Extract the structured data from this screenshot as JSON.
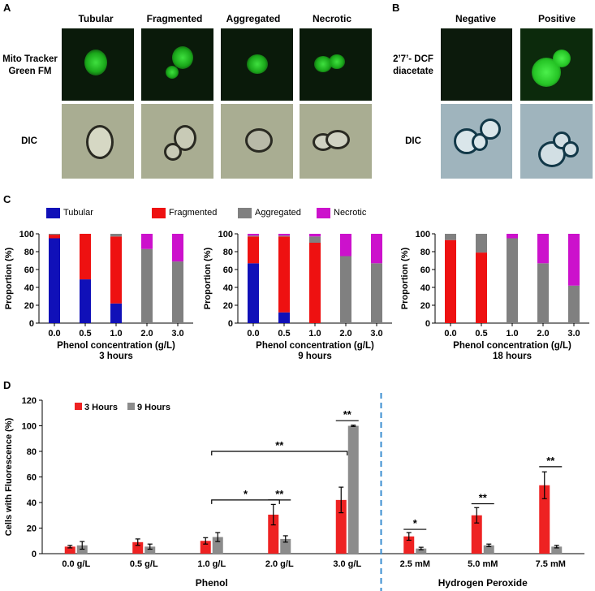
{
  "panelA": {
    "letter": "A",
    "columns": [
      "Tubular",
      "Fragmented",
      "Aggregated",
      "Necrotic"
    ],
    "rows": [
      "Mito Tracker Green FM",
      "DIC"
    ]
  },
  "panelB": {
    "letter": "B",
    "columns": [
      "Negative",
      "Positive"
    ],
    "rows": [
      "2’7’- DCF diacetate",
      "DIC"
    ]
  },
  "panelC": {
    "letter": "C",
    "legend": [
      {
        "name": "Tubular",
        "color": "#1010b8"
      },
      {
        "name": "Fragmented",
        "color": "#ee1111"
      },
      {
        "name": "Aggregated",
        "color": "#808080"
      },
      {
        "name": "Necrotic",
        "color": "#cc11cc"
      }
    ]
  },
  "panelD": {
    "letter": "D",
    "group1": "Phenol",
    "group2": "Hydrogen Peroxide",
    "legend": [
      {
        "name": "3 Hours",
        "color": "#ee2222"
      },
      {
        "name": "9 Hours",
        "color": "#8c8c8c"
      }
    ]
  },
  "chart_data": [
    {
      "type": "bar",
      "stacked": true,
      "xlabel": "Phenol concentration (g/L)",
      "subtitle": "3 hours",
      "ylabel": "Proportion (%)",
      "categories": [
        "0.0",
        "0.5",
        "1.0",
        "2.0",
        "3.0"
      ],
      "ylim": [
        0,
        100
      ],
      "yticks": [
        0,
        20,
        40,
        60,
        80,
        100
      ],
      "series": [
        {
          "name": "Tubular",
          "values": [
            95,
            49,
            22,
            0,
            0
          ]
        },
        {
          "name": "Fragmented",
          "values": [
            4,
            51,
            75,
            0,
            0
          ]
        },
        {
          "name": "Aggregated",
          "values": [
            1,
            0,
            3,
            83,
            69
          ]
        },
        {
          "name": "Necrotic",
          "values": [
            0,
            0,
            0,
            17,
            31
          ]
        }
      ]
    },
    {
      "type": "bar",
      "stacked": true,
      "xlabel": "Phenol concentration (g/L)",
      "subtitle": "9 hours",
      "ylabel": "Proportion (%)",
      "categories": [
        "0.0",
        "0.5",
        "1.0",
        "2.0",
        "3.0"
      ],
      "ylim": [
        0,
        100
      ],
      "yticks": [
        0,
        20,
        40,
        60,
        80,
        100
      ],
      "series": [
        {
          "name": "Tubular",
          "values": [
            67,
            12,
            0,
            0,
            0
          ]
        },
        {
          "name": "Fragmented",
          "values": [
            30,
            85,
            90,
            0,
            0
          ]
        },
        {
          "name": "Aggregated",
          "values": [
            1,
            1,
            7,
            75,
            67
          ]
        },
        {
          "name": "Necrotic",
          "values": [
            2,
            2,
            3,
            25,
            33
          ]
        }
      ]
    },
    {
      "type": "bar",
      "stacked": true,
      "xlabel": "Phenol concentration (g/L)",
      "subtitle": "18 hours",
      "ylabel": "Proportion (%)",
      "categories": [
        "0.0",
        "0.5",
        "1.0",
        "2.0",
        "3.0"
      ],
      "ylim": [
        0,
        100
      ],
      "yticks": [
        0,
        20,
        40,
        60,
        80,
        100
      ],
      "series": [
        {
          "name": "Tubular",
          "values": [
            0,
            0,
            0,
            0,
            0
          ]
        },
        {
          "name": "Fragmented",
          "values": [
            93,
            79,
            0,
            0,
            0
          ]
        },
        {
          "name": "Aggregated",
          "values": [
            7,
            21,
            95,
            67,
            42
          ]
        },
        {
          "name": "Necrotic",
          "values": [
            0,
            0,
            5,
            33,
            58
          ]
        }
      ]
    },
    {
      "type": "bar",
      "ylabel": "Cells with Fluorescence (%)",
      "ylim": [
        0,
        120
      ],
      "yticks": [
        0,
        20,
        40,
        60,
        80,
        100,
        120
      ],
      "categories": [
        "0.0 g/L",
        "0.5 g/L",
        "1.0 g/L",
        "2.0 g/L",
        "3.0 g/L",
        "2.5 mM",
        "5.0 mM",
        "7.5 mM"
      ],
      "series": [
        {
          "name": "3 Hours",
          "values": [
            5.5,
            9,
            10,
            30.5,
            42,
            13.5,
            30,
            53.5
          ],
          "errors": [
            1,
            2.5,
            2.5,
            8,
            10,
            3,
            6,
            10.5
          ]
        },
        {
          "name": "9 Hours",
          "values": [
            6.5,
            5.5,
            13,
            11.5,
            100,
            4,
            6.5,
            5.5
          ],
          "errors": [
            3,
            2,
            3.5,
            2.5,
            0.5,
            1,
            1,
            1
          ]
        }
      ],
      "significance": [
        {
          "label": "*",
          "from": "1.0 g/L",
          "to": "2.0 g/L",
          "y": 42
        },
        {
          "label": "**",
          "from": "2.0 g/L",
          "to": "2.0 g/L",
          "y": 42
        },
        {
          "label": "**",
          "from": "1.0 g/L",
          "to": "3.0 g/L",
          "y": 80
        },
        {
          "label": "**",
          "from": "3.0 g/L",
          "to": "3.0 g/L",
          "y": 104
        },
        {
          "label": "*",
          "from": "2.5 mM",
          "to": "2.5 mM",
          "y": 19
        },
        {
          "label": "**",
          "from": "5.0 mM",
          "to": "5.0 mM",
          "y": 39
        },
        {
          "label": "**",
          "from": "7.5 mM",
          "to": "7.5 mM",
          "y": 68
        }
      ]
    }
  ]
}
